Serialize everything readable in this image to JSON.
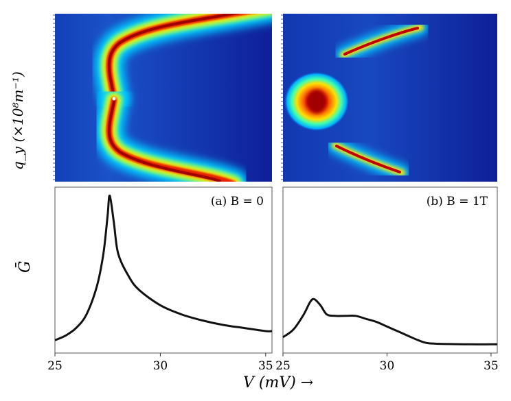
{
  "figure": {
    "ylabel_top": "q_y (×10⁸m⁻¹)",
    "ylabel_bottom": "Ḡ",
    "xlabel": "V (mV) →"
  },
  "colors": {
    "map_low": "#1020a8",
    "map_mid": "#00c8ff",
    "map_high": "#ffe000",
    "map_peak": "#a00000",
    "curve": "#111111"
  },
  "chart_data": [
    {
      "type": "heatmap",
      "panel": "a",
      "title": "",
      "xlabel": "V (mV)",
      "ylabel": "q_y (×10⁸m⁻¹)",
      "xlim": [
        25,
        35
      ],
      "ridges": [
        {
          "name": "upper branch",
          "x": [
            27.5,
            28.5,
            30,
            32,
            34.5
          ],
          "y_norm": [
            0.5,
            0.76,
            0.88,
            0.96,
            1.02
          ]
        },
        {
          "name": "lower branch",
          "x": [
            27.5,
            28.5,
            30,
            32,
            34.5
          ],
          "y_norm": [
            0.5,
            0.24,
            0.12,
            0.04,
            -0.02
          ]
        }
      ],
      "colormap": "jet"
    },
    {
      "type": "heatmap",
      "panel": "b",
      "title": "",
      "xlabel": "V (mV)",
      "ylabel": "q_y (×10⁸m⁻¹)",
      "xlim": [
        25,
        35
      ],
      "features": [
        {
          "name": "central spot",
          "x": 26.5,
          "y_norm": 0.5
        },
        {
          "name": "upper streak",
          "x": [
            28,
            31
          ],
          "y_norm": [
            0.78,
            0.92
          ]
        },
        {
          "name": "lower streak",
          "x": [
            28,
            30.5
          ],
          "y_norm": [
            0.22,
            0.1
          ]
        }
      ],
      "colormap": "jet"
    },
    {
      "type": "line",
      "panel": "a",
      "annotation": "(a) B = 0",
      "xlabel": "V (mV)",
      "ylabel": "Ḡ",
      "xlim": [
        25,
        35.3
      ],
      "ylim": [
        0,
        1.0
      ],
      "x_ticks": [
        "25",
        "30",
        "35"
      ],
      "series": [
        {
          "name": "B=0",
          "x": [
            25,
            25.5,
            26,
            26.5,
            27,
            27.3,
            27.5,
            27.6,
            27.8,
            28,
            28.5,
            29,
            30,
            31,
            32,
            33,
            34,
            35,
            35.3
          ],
          "y": [
            0.03,
            0.06,
            0.11,
            0.2,
            0.39,
            0.6,
            0.85,
            0.98,
            0.8,
            0.6,
            0.45,
            0.36,
            0.26,
            0.2,
            0.16,
            0.13,
            0.11,
            0.09,
            0.09
          ]
        }
      ]
    },
    {
      "type": "line",
      "panel": "b",
      "annotation": "(b) B = 1T",
      "xlabel": "V (mV)",
      "ylabel": "Ḡ",
      "xlim": [
        25,
        35.3
      ],
      "ylim": [
        0,
        1.0
      ],
      "x_ticks": [
        "25",
        "30",
        "35"
      ],
      "series": [
        {
          "name": "B=1T",
          "x": [
            25,
            25.5,
            26,
            26.3,
            26.5,
            26.8,
            27.1,
            27.5,
            28,
            28.5,
            29,
            29.5,
            30,
            30.5,
            31,
            31.5,
            32,
            33,
            34,
            35,
            35.3
          ],
          "y": [
            0.05,
            0.1,
            0.2,
            0.28,
            0.3,
            0.26,
            0.2,
            0.19,
            0.19,
            0.19,
            0.17,
            0.15,
            0.12,
            0.09,
            0.06,
            0.03,
            0.01,
            0.005,
            0.003,
            0.003,
            0.003
          ]
        }
      ]
    }
  ]
}
